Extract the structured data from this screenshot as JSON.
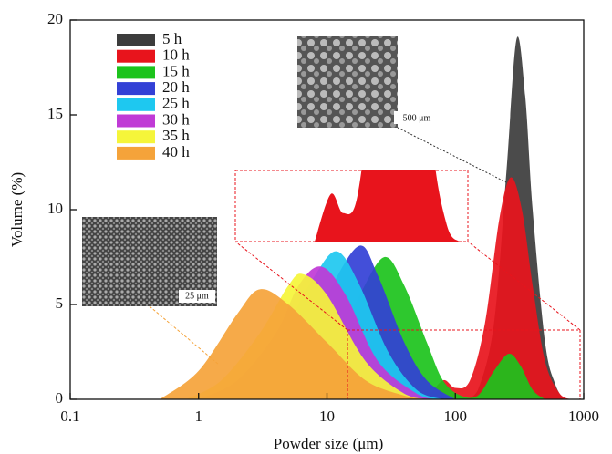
{
  "chart_data": {
    "type": "area",
    "log_x": true,
    "xlabel": "Powder  size (μm)",
    "ylabel": "Volume (%)",
    "xlim": [
      0.1,
      1000
    ],
    "xticks": [
      0.1,
      1,
      10,
      100,
      1000
    ],
    "ylim": [
      0,
      20
    ],
    "yticks": [
      0,
      5,
      10,
      15,
      20
    ],
    "legend": "upper left",
    "annotations": [
      "500 μm",
      "25 μm"
    ],
    "series": [
      {
        "name": "5 h",
        "color": "#3c3c3c",
        "x": [
          120,
          150,
          200,
          250,
          300,
          350,
          400,
          500,
          600,
          700
        ],
        "values": [
          0,
          0.5,
          4,
          12,
          19,
          16,
          10,
          3,
          0.8,
          0
        ]
      },
      {
        "name": "10 h",
        "color": "#e8141c",
        "x": [
          60,
          80,
          100,
          130,
          170,
          220,
          270,
          330,
          400,
          500,
          650,
          800
        ],
        "values": [
          0,
          1,
          0.6,
          1,
          4,
          9.5,
          11.7,
          10,
          6,
          2,
          0.3,
          0
        ]
      },
      {
        "name": "15 h",
        "color": "#1cc31c",
        "x": [
          4,
          8,
          12,
          18,
          28,
          40,
          60,
          80,
          110,
          150,
          200,
          260,
          320,
          400,
          500
        ],
        "values": [
          0,
          1,
          3,
          5.5,
          7.5,
          6,
          3,
          1,
          0.2,
          0.2,
          1.5,
          2.4,
          1.8,
          0.5,
          0
        ]
      },
      {
        "name": "20 h",
        "color": "#3340d6",
        "x": [
          2,
          4,
          7,
          11,
          18,
          25,
          40,
          60,
          100
        ],
        "values": [
          0,
          0.8,
          3,
          6,
          8.1,
          6.5,
          3,
          1,
          0
        ]
      },
      {
        "name": "25 h",
        "color": "#1ec8f0",
        "x": [
          1.2,
          3,
          5,
          8,
          12,
          18,
          30,
          50,
          80
        ],
        "values": [
          0,
          1.5,
          4,
          6.5,
          7.8,
          6,
          2.5,
          0.5,
          0
        ]
      },
      {
        "name": "30 h",
        "color": "#c03ad6",
        "x": [
          1,
          2,
          4,
          6,
          9,
          14,
          25,
          50,
          70
        ],
        "values": [
          0,
          1,
          3.5,
          6,
          7,
          5.5,
          2,
          0.3,
          0
        ]
      },
      {
        "name": "35 h",
        "color": "#f5f53a",
        "x": [
          0.8,
          1.5,
          3,
          5,
          6.5,
          10,
          20,
          40,
          60
        ],
        "values": [
          0,
          1,
          3.5,
          6,
          6.6,
          5.5,
          2,
          0.3,
          0
        ]
      },
      {
        "name": "40 h",
        "color": "#f5a33a",
        "x": [
          0.5,
          1,
          2,
          3,
          5,
          10,
          20,
          40,
          60
        ],
        "values": [
          0,
          1.5,
          4.5,
          5.8,
          5,
          3,
          1,
          0.2,
          0
        ]
      }
    ]
  }
}
